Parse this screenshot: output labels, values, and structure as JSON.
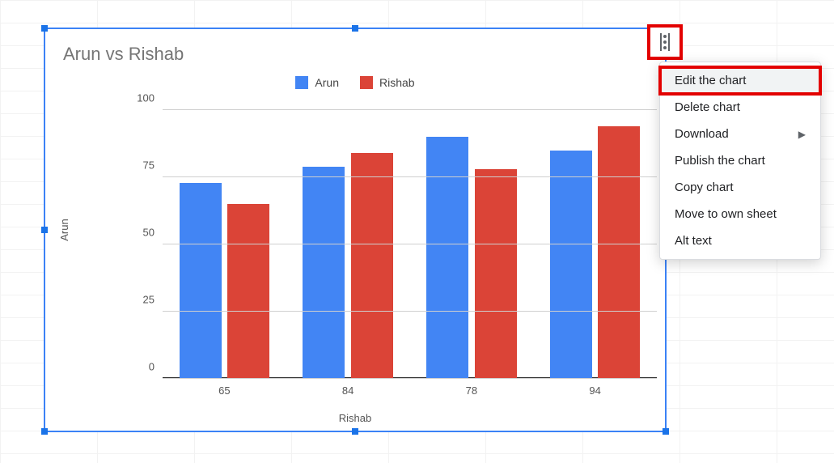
{
  "chart": {
    "title": "Arun vs Rishab",
    "type": "bar",
    "title_fontsize": 22,
    "title_color": "#757575",
    "ylabel": "Arun",
    "xlabel": "Rishab",
    "label_fontsize": 13,
    "background_color": "#ffffff",
    "grid_color": "#cfcfcf",
    "axis_color": "#333333",
    "selection_border_color": "#3b82f6",
    "selection_handle_color": "#1a73e8",
    "ylim": [
      0,
      100
    ],
    "yticks": [
      0,
      25,
      50,
      75,
      100
    ],
    "categories": [
      "65",
      "84",
      "78",
      "94"
    ],
    "series": [
      {
        "name": "Arun",
        "color": "#4285f4",
        "values": [
          73,
          79,
          90,
          85
        ]
      },
      {
        "name": "Rishab",
        "color": "#db4437",
        "values": [
          65,
          84,
          78,
          94
        ]
      }
    ],
    "bar_width": 0.34,
    "bar_gap": 0.05,
    "group_gap": 0.26
  },
  "menu": {
    "highlight_color": "#e30000",
    "items": [
      {
        "label": "Edit the chart",
        "highlighted": true,
        "submenu": false
      },
      {
        "label": "Delete chart",
        "highlighted": false,
        "submenu": false
      },
      {
        "label": "Download",
        "highlighted": false,
        "submenu": true
      },
      {
        "label": "Publish the chart",
        "highlighted": false,
        "submenu": false
      },
      {
        "label": "Copy chart",
        "highlighted": false,
        "submenu": false
      },
      {
        "label": "Move to own sheet",
        "highlighted": false,
        "submenu": false
      },
      {
        "label": "Alt text",
        "highlighted": false,
        "submenu": false
      }
    ]
  }
}
